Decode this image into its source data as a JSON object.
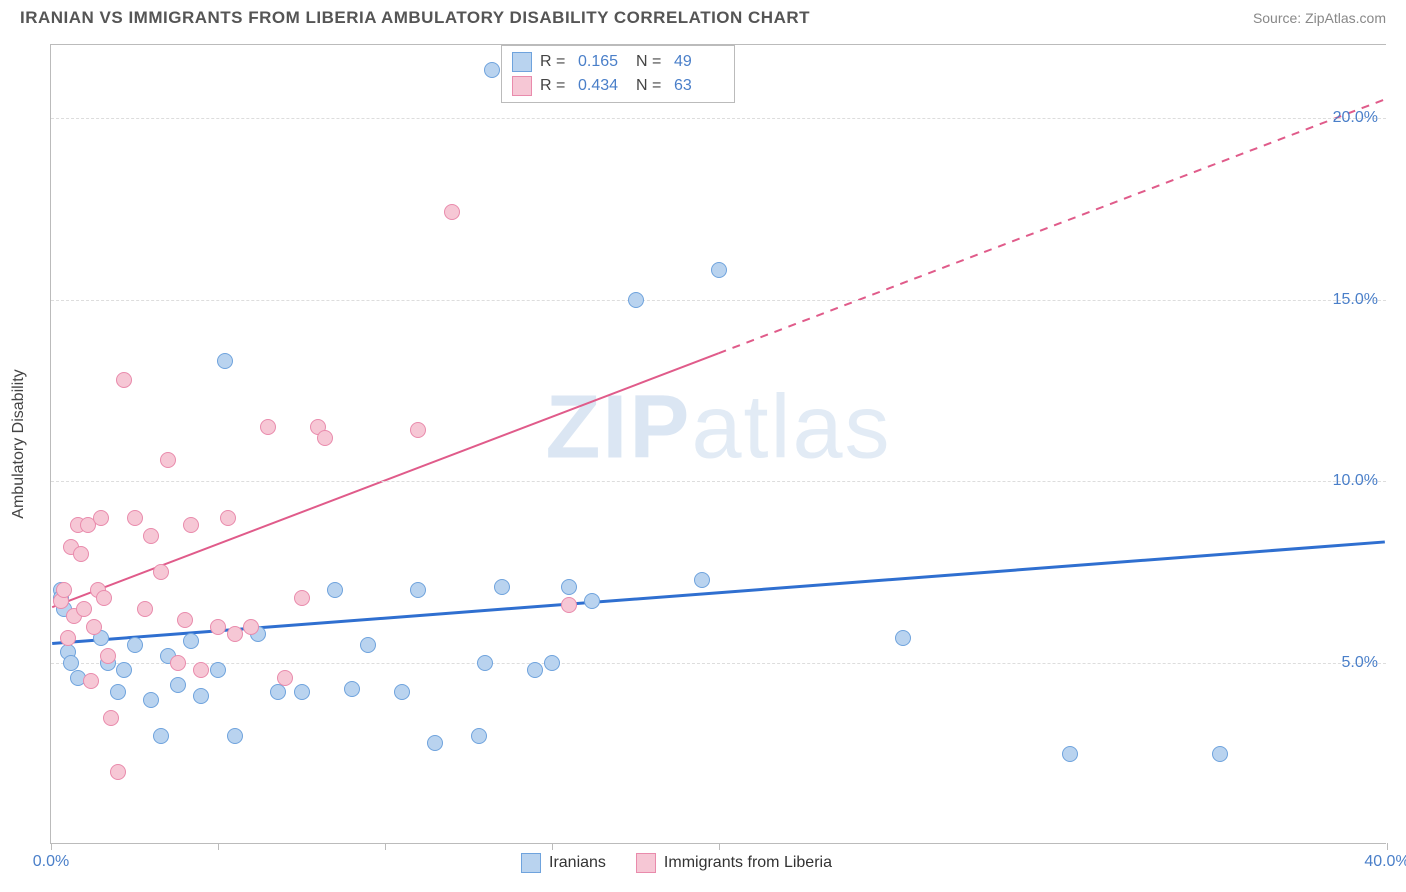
{
  "header": {
    "title": "IRANIAN VS IMMIGRANTS FROM LIBERIA AMBULATORY DISABILITY CORRELATION CHART",
    "source": "Source: ZipAtlas.com"
  },
  "watermark": {
    "bold": "ZIP",
    "light": "atlas"
  },
  "chart": {
    "type": "scatter",
    "ylabel": "Ambulatory Disability",
    "xlim": [
      0,
      40
    ],
    "ylim": [
      0,
      22
    ],
    "xtick_positions": [
      0,
      5,
      10,
      15,
      20,
      40
    ],
    "xtick_labels": {
      "0": "0.0%",
      "40": "40.0%"
    },
    "ytick_positions": [
      5,
      10,
      15,
      20
    ],
    "ytick_labels": {
      "5": "5.0%",
      "10": "10.0%",
      "15": "15.0%",
      "20": "20.0%"
    },
    "xtick_label_color_left": "#4a7fc9",
    "xtick_label_color_right": "#4a7fc9",
    "ytick_label_color": "#4a7fc9",
    "grid_color": "#dddddd",
    "background_color": "#ffffff",
    "series": [
      {
        "name": "Iranians",
        "fill": "#b9d3ef",
        "stroke": "#6fa3dd",
        "r_value": "0.165",
        "n_value": "49",
        "trend": {
          "x1": 0,
          "y1": 5.5,
          "x2": 40,
          "y2": 8.3,
          "dashed_from_x": null,
          "color": "#2f6fd0",
          "width": 3
        },
        "points": [
          [
            0.3,
            7.0
          ],
          [
            0.3,
            6.8
          ],
          [
            0.4,
            6.5
          ],
          [
            0.5,
            5.3
          ],
          [
            0.6,
            5.0
          ],
          [
            0.8,
            4.6
          ],
          [
            1.5,
            5.7
          ],
          [
            1.7,
            5.0
          ],
          [
            2.0,
            4.2
          ],
          [
            2.2,
            4.8
          ],
          [
            2.5,
            5.5
          ],
          [
            3.0,
            4.0
          ],
          [
            3.3,
            3.0
          ],
          [
            3.5,
            5.2
          ],
          [
            3.8,
            4.4
          ],
          [
            4.2,
            5.6
          ],
          [
            4.5,
            4.1
          ],
          [
            5.0,
            4.8
          ],
          [
            5.2,
            13.3
          ],
          [
            5.5,
            3.0
          ],
          [
            6.2,
            5.8
          ],
          [
            6.8,
            4.2
          ],
          [
            7.5,
            4.2
          ],
          [
            8.5,
            7.0
          ],
          [
            9.0,
            4.3
          ],
          [
            9.5,
            5.5
          ],
          [
            10.5,
            4.2
          ],
          [
            11.0,
            7.0
          ],
          [
            11.5,
            2.8
          ],
          [
            12.8,
            3.0
          ],
          [
            13.0,
            5.0
          ],
          [
            13.2,
            21.3
          ],
          [
            13.5,
            7.1
          ],
          [
            14.5,
            4.8
          ],
          [
            15.0,
            5.0
          ],
          [
            15.5,
            7.1
          ],
          [
            16.2,
            6.7
          ],
          [
            17.5,
            15.0
          ],
          [
            19.5,
            7.3
          ],
          [
            20.0,
            15.8
          ],
          [
            25.5,
            5.7
          ],
          [
            30.5,
            2.5
          ],
          [
            35.0,
            2.5
          ]
        ]
      },
      {
        "name": "Immigrants from Liberia",
        "fill": "#f6c7d5",
        "stroke": "#e98bac",
        "r_value": "0.434",
        "n_value": "63",
        "trend": {
          "x1": 0,
          "y1": 6.5,
          "x2": 40,
          "y2": 20.5,
          "dashed_from_x": 20,
          "color": "#e05b8a",
          "width": 2
        },
        "points": [
          [
            0.3,
            6.7
          ],
          [
            0.4,
            7.0
          ],
          [
            0.5,
            5.7
          ],
          [
            0.6,
            8.2
          ],
          [
            0.7,
            6.3
          ],
          [
            0.8,
            8.8
          ],
          [
            0.9,
            8.0
          ],
          [
            1.0,
            6.5
          ],
          [
            1.1,
            8.8
          ],
          [
            1.2,
            4.5
          ],
          [
            1.3,
            6.0
          ],
          [
            1.4,
            7.0
          ],
          [
            1.5,
            9.0
          ],
          [
            1.6,
            6.8
          ],
          [
            1.7,
            5.2
          ],
          [
            1.8,
            3.5
          ],
          [
            2.0,
            2.0
          ],
          [
            2.2,
            12.8
          ],
          [
            2.5,
            9.0
          ],
          [
            2.8,
            6.5
          ],
          [
            3.0,
            8.5
          ],
          [
            3.3,
            7.5
          ],
          [
            3.5,
            10.6
          ],
          [
            3.8,
            5.0
          ],
          [
            4.0,
            6.2
          ],
          [
            4.2,
            8.8
          ],
          [
            4.5,
            4.8
          ],
          [
            5.0,
            6.0
          ],
          [
            5.3,
            9.0
          ],
          [
            5.5,
            5.8
          ],
          [
            6.0,
            6.0
          ],
          [
            6.5,
            11.5
          ],
          [
            7.0,
            4.6
          ],
          [
            7.5,
            6.8
          ],
          [
            8.0,
            11.5
          ],
          [
            8.2,
            11.2
          ],
          [
            11.0,
            11.4
          ],
          [
            12.0,
            17.4
          ],
          [
            15.5,
            6.6
          ]
        ]
      }
    ],
    "stats_box": {
      "r_label": "R  =",
      "n_label": "N  =",
      "value_color": "#4a7fc9"
    },
    "legend": {
      "items": [
        {
          "label": "Iranians",
          "series": 0
        },
        {
          "label": "Immigrants from Liberia",
          "series": 1
        }
      ]
    }
  }
}
